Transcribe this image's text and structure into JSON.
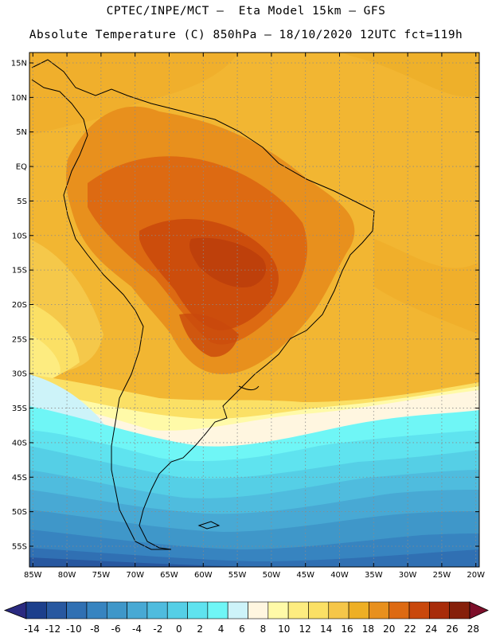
{
  "header": {
    "line1": "CPTEC/INPE/MCT –  Eta Model 15km – GFS",
    "line2": "Absolute Temperature (C) 850hPa – 18/10/2020 12UTC fct=119h"
  },
  "map": {
    "lat_labels": [
      "15N",
      "10N",
      "5N",
      "EQ",
      "5S",
      "10S",
      "15S",
      "20S",
      "25S",
      "30S",
      "35S",
      "40S",
      "45S",
      "50S",
      "55S"
    ],
    "lon_labels": [
      "85W",
      "80W",
      "75W",
      "70W",
      "65W",
      "60W",
      "55W",
      "50W",
      "45W",
      "40W",
      "35W",
      "30W",
      "25W",
      "20W"
    ],
    "lat_values": [
      15,
      10,
      5,
      0,
      -5,
      -10,
      -15,
      -20,
      -25,
      -30,
      -35,
      -40,
      -45,
      -50,
      -55
    ],
    "lon_values": [
      -85,
      -80,
      -75,
      -70,
      -65,
      -60,
      -55,
      -50,
      -45,
      -40,
      -35,
      -30,
      -25,
      -20
    ],
    "extent": {
      "lon_min": -85.5,
      "lon_max": -19.5,
      "lat_min": -58,
      "lat_max": 16.5
    },
    "gridlines": true
  },
  "colorbar": {
    "labels": [
      "-14",
      "-12",
      "-10",
      "-8",
      "-6",
      "-4",
      "-2",
      "0",
      "2",
      "4",
      "6",
      "8",
      "10",
      "12",
      "14",
      "16",
      "18",
      "20",
      "22",
      "24",
      "26",
      "28"
    ],
    "colors": [
      "#1c3f8c",
      "#2858a0",
      "#3070b3",
      "#3784c0",
      "#3f97c9",
      "#48a9d4",
      "#4fbcde",
      "#55cfe6",
      "#5fe3ef",
      "#6ff6f6",
      "#cdf3f9",
      "#fff6e0",
      "#fffaa8",
      "#fdec80",
      "#fbe065",
      "#f5c649",
      "#eeaf25",
      "#e8901d",
      "#dd6a12",
      "#c9480c",
      "#a82c0a",
      "#86200a"
    ],
    "under_color": "#2a2a80",
    "over_color": "#7d0f2a"
  }
}
